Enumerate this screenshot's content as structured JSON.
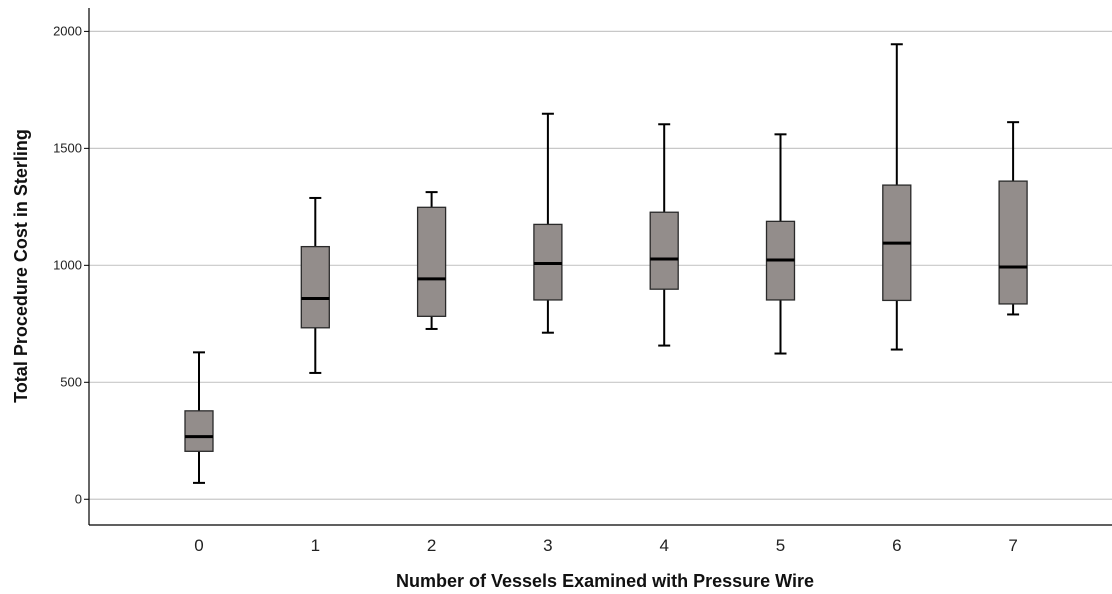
{
  "chart_data": {
    "type": "boxplot",
    "xlabel": "Number of Vessels Examined with Pressure Wire",
    "ylabel": "Total Procedure Cost in Sterling",
    "ylim": [
      -110,
      2100
    ],
    "yticks": [
      0,
      500,
      1000,
      1500,
      2000
    ],
    "grid": "horizontal",
    "colors": {
      "box_fill": "#938d8b",
      "stroke": "#000000",
      "grid": "#c8c8c8"
    },
    "categories": [
      "0",
      "1",
      "2",
      "3",
      "4",
      "5",
      "6",
      "7"
    ],
    "boxes": [
      {
        "category": "0",
        "min": 70,
        "q1": 205,
        "median": 268,
        "q3": 378,
        "max": 628
      },
      {
        "category": "1",
        "min": 540,
        "q1": 733,
        "median": 858,
        "q3": 1080,
        "max": 1288
      },
      {
        "category": "2",
        "min": 728,
        "q1": 782,
        "median": 942,
        "q3": 1248,
        "max": 1313
      },
      {
        "category": "3",
        "min": 712,
        "q1": 852,
        "median": 1008,
        "q3": 1175,
        "max": 1648
      },
      {
        "category": "4",
        "min": 657,
        "q1": 898,
        "median": 1027,
        "q3": 1227,
        "max": 1603
      },
      {
        "category": "5",
        "min": 623,
        "q1": 852,
        "median": 1023,
        "q3": 1188,
        "max": 1560
      },
      {
        "category": "6",
        "min": 640,
        "q1": 850,
        "median": 1095,
        "q3": 1343,
        "max": 1945
      },
      {
        "category": "7",
        "min": 790,
        "q1": 835,
        "median": 993,
        "q3": 1360,
        "max": 1612
      }
    ]
  }
}
